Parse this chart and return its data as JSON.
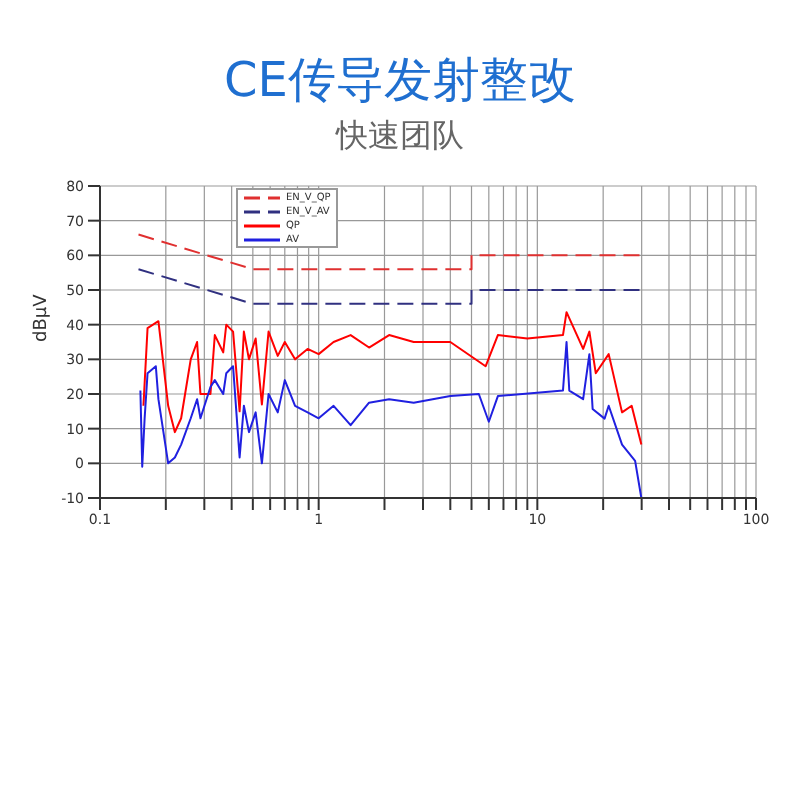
{
  "chart_data": {
    "type": "line",
    "title": "CE传导发射整改",
    "subtitle": "快速团队",
    "ylabel": "dBμV",
    "xlim": [
      0.1,
      100
    ],
    "xticks": [
      0.1,
      {
        "value": 0.2,
        "label": null
      },
      {
        "value": 0.3,
        "label": null
      },
      {
        "value": 0.4,
        "label": null
      },
      {
        "value": 0.5,
        "label": null
      },
      {
        "value": 0.6,
        "label": null
      },
      {
        "value": 0.7,
        "label": null
      },
      {
        "value": 0.8,
        "label": null
      },
      {
        "value": 0.9,
        "label": null
      },
      1,
      {
        "value": 2,
        "label": null
      },
      {
        "value": 3,
        "label": null
      },
      {
        "value": 4,
        "label": null
      },
      {
        "value": 5,
        "label": null
      },
      {
        "value": 6,
        "label": null
      },
      {
        "value": 7,
        "label": null
      },
      {
        "value": 8,
        "label": null
      },
      {
        "value": 9,
        "label": null
      },
      10,
      {
        "value": 20,
        "label": null
      },
      {
        "value": 30,
        "label": null
      },
      {
        "value": 40,
        "label": null
      },
      {
        "value": 50,
        "label": null
      },
      {
        "value": 60,
        "label": null
      },
      {
        "value": 70,
        "label": null
      },
      {
        "value": 80,
        "label": null
      },
      {
        "value": 90,
        "label": null
      },
      100
    ],
    "ylim": [
      -10,
      80
    ],
    "yticks": [
      -10,
      0,
      10,
      20,
      30,
      40,
      50,
      60,
      70,
      80
    ],
    "log": "x",
    "grid": true,
    "legend": "top left",
    "marker": "none",
    "series": [
      {
        "name": "EN_V_QP",
        "color": "#e03030",
        "line_style": "dashed",
        "x": [
          0.15,
          0.5,
          5,
          5,
          30
        ],
        "values": [
          66,
          56,
          56,
          60,
          60
        ]
      },
      {
        "name": "EN_V_AV",
        "color": "#303080",
        "line_style": "dashed",
        "x": [
          0.15,
          0.5,
          5,
          5,
          30
        ],
        "values": [
          56,
          46,
          46,
          50,
          50
        ]
      },
      {
        "name": "QP",
        "color": "#ff0000",
        "line_style": "solid",
        "x": [
          0.158,
          0.165,
          0.185,
          0.205,
          0.22,
          0.235,
          0.26,
          0.278,
          0.288,
          0.32,
          0.335,
          0.366,
          0.378,
          0.406,
          0.435,
          0.455,
          0.48,
          0.515,
          0.55,
          0.59,
          0.65,
          0.7,
          0.78,
          0.89,
          1.0,
          1.17,
          1.4,
          1.7,
          2.1,
          2.72,
          4.0,
          5.8,
          6.6,
          9,
          13.1,
          13.6,
          16.2,
          17.3,
          18.5,
          21.2,
          24.4,
          27,
          29.9
        ],
        "values": [
          16.6,
          39,
          41,
          16.6,
          9,
          13,
          30,
          35,
          20,
          20,
          37,
          32,
          40,
          38,
          15,
          38,
          30,
          36,
          17,
          38,
          31,
          35,
          30,
          33,
          31.5,
          35,
          37,
          33.4,
          37,
          35,
          35,
          28,
          37,
          36,
          37,
          43.6,
          33,
          38,
          26,
          31.5,
          14.7,
          16.6,
          5.4
        ]
      },
      {
        "name": "AV",
        "color": "#2020e0",
        "line_style": "solid",
        "x": [
          0.153,
          0.156,
          0.16,
          0.165,
          0.18,
          0.185,
          0.205,
          0.22,
          0.235,
          0.26,
          0.278,
          0.288,
          0.32,
          0.335,
          0.366,
          0.378,
          0.406,
          0.435,
          0.455,
          0.48,
          0.515,
          0.55,
          0.59,
          0.65,
          0.7,
          0.78,
          0.89,
          1.0,
          1.17,
          1.4,
          1.7,
          2.1,
          2.72,
          4.0,
          5.4,
          6,
          6.6,
          13.1,
          13.6,
          14,
          16.2,
          17.3,
          17.9,
          20.3,
          21.2,
          24.4,
          28,
          29.9
        ],
        "values": [
          21,
          -1,
          13,
          26,
          28,
          18.5,
          0,
          1.7,
          5.4,
          13,
          18.5,
          13,
          22,
          24,
          20,
          26,
          28,
          1.7,
          16.6,
          9,
          14.7,
          0,
          20,
          14.7,
          24,
          16.6,
          14.7,
          13,
          16.6,
          11,
          17.5,
          18.5,
          17.5,
          19.4,
          20,
          12,
          19.4,
          21,
          35,
          21,
          18.5,
          31.5,
          15.7,
          12.9,
          16.6,
          5.4,
          0.7,
          -10
        ]
      }
    ]
  }
}
